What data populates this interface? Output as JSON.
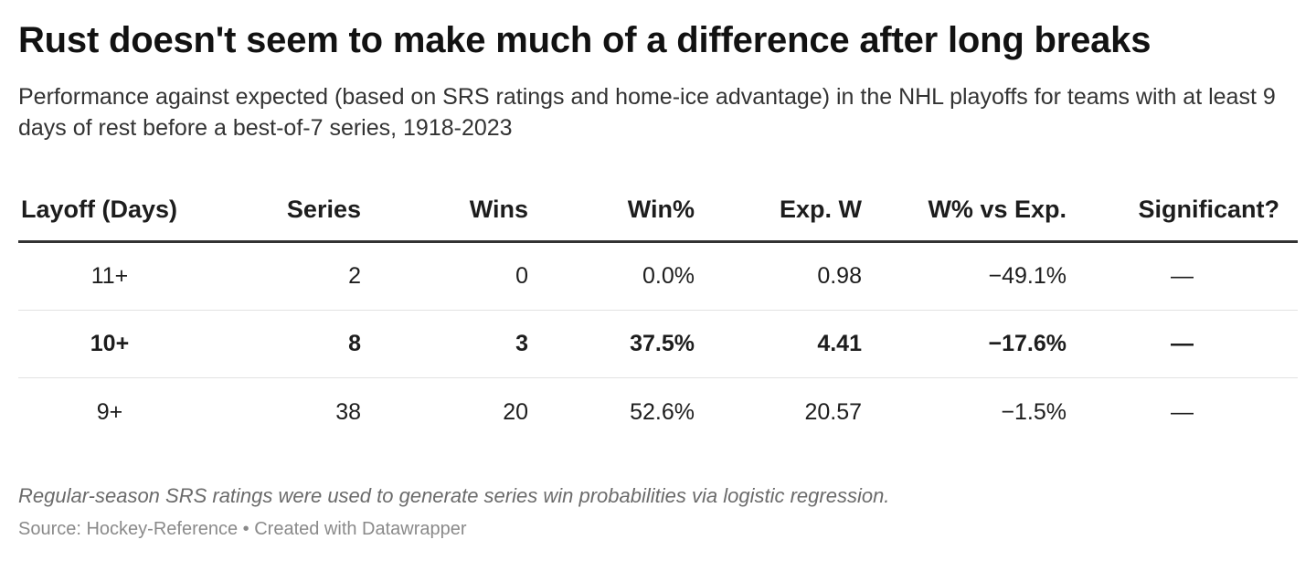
{
  "header": {
    "title": "Rust doesn't seem to make much of a difference after long breaks",
    "subtitle": "Performance against expected (based on SRS ratings and home-ice advantage) in the NHL playoffs for teams with at least 9 days of rest before a best-of-7 series, 1918-2023"
  },
  "chart_data": {
    "type": "table",
    "columns": [
      "Layoff (Days)",
      "Series",
      "Wins",
      "Win%",
      "Exp. W",
      "W% vs Exp.",
      "Significant?"
    ],
    "rows": [
      {
        "layoff": "11+",
        "series": "2",
        "wins": "0",
        "win_pct": "0.0%",
        "exp_w": "0.98",
        "w_vs_exp": "−49.1%",
        "significant": "—",
        "highlight": false
      },
      {
        "layoff": "10+",
        "series": "8",
        "wins": "3",
        "win_pct": "37.5%",
        "exp_w": "4.41",
        "w_vs_exp": "−17.6%",
        "significant": "—",
        "highlight": true
      },
      {
        "layoff": "9+",
        "series": "38",
        "wins": "20",
        "win_pct": "52.6%",
        "exp_w": "20.57",
        "w_vs_exp": "−1.5%",
        "significant": "—",
        "highlight": false
      }
    ]
  },
  "footer": {
    "notes": "Regular-season SRS ratings were used to generate series win probabilities via logistic regression.",
    "source": "Source: Hockey-Reference • Created with Datawrapper"
  },
  "colors": {
    "text": "#1d1d1d",
    "header_rule": "#333333",
    "row_rule": "#e2e2e2",
    "notes": "#6b6b6b",
    "source": "#8a8a8a"
  }
}
